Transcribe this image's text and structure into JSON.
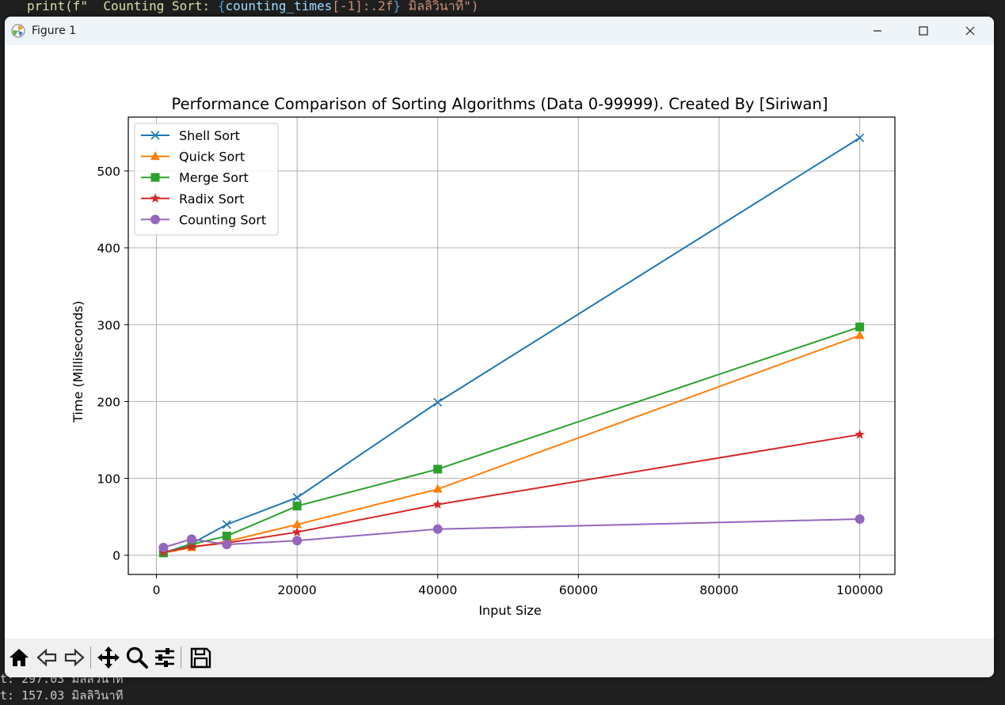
{
  "background_code": {
    "top_line_parts": [
      "print(f\"  Counting Sort: ",
      "{",
      "counting_times",
      "[-1]",
      ":.2f",
      "}",
      " มิลลิวินาที\")"
    ],
    "bottom_lines": [
      "t: 297.03 มิลลิวินาที",
      "t: 157.03 มิลลิวินาที"
    ]
  },
  "window": {
    "title": "Figure 1",
    "minimize_label": "—",
    "maximize_label": "☐",
    "close_label": "✕"
  },
  "toolbar": {
    "buttons": [
      {
        "name": "home-icon",
        "label": "Home"
      },
      {
        "name": "back-icon",
        "label": "Back"
      },
      {
        "name": "forward-icon",
        "label": "Forward"
      },
      {
        "name": "pan-icon",
        "label": "Pan"
      },
      {
        "name": "zoom-icon",
        "label": "Zoom"
      },
      {
        "name": "configure-subplots-icon",
        "label": "Configure subplots"
      },
      {
        "name": "save-icon",
        "label": "Save"
      }
    ]
  },
  "chart_data": {
    "type": "line",
    "title": "Performance Comparison of Sorting Algorithms (Data 0-99999). Created By [Siriwan]",
    "xlabel": "Input Size",
    "ylabel": "Time (Milliseconds)",
    "xlim": [
      -4000,
      105000
    ],
    "ylim": [
      -25,
      570
    ],
    "xticks": [
      0,
      20000,
      40000,
      60000,
      80000,
      100000
    ],
    "yticks": [
      0,
      100,
      200,
      300,
      400,
      500
    ],
    "grid": true,
    "legend_position": "upper-left",
    "x": [
      1000,
      5000,
      10000,
      20000,
      40000,
      100000
    ],
    "series": [
      {
        "name": "Shell Sort",
        "color": "#1f77b4",
        "marker": "x",
        "values": [
          3,
          15,
          40,
          75,
          199,
          543
        ]
      },
      {
        "name": "Quick Sort",
        "color": "#ff7f0e",
        "marker": "triangle",
        "values": [
          3,
          10,
          18,
          40,
          86,
          286
        ]
      },
      {
        "name": "Merge Sort",
        "color": "#2ca02c",
        "marker": "square",
        "values": [
          3,
          14,
          25,
          64,
          112,
          297
        ]
      },
      {
        "name": "Radix Sort",
        "color": "#d62728",
        "marker": "star",
        "values": [
          4,
          11,
          16,
          30,
          66,
          157
        ]
      },
      {
        "name": "Counting Sort",
        "color": "#9467bd",
        "marker": "circle",
        "values": [
          10,
          21,
          14,
          19,
          34,
          47
        ]
      }
    ]
  }
}
